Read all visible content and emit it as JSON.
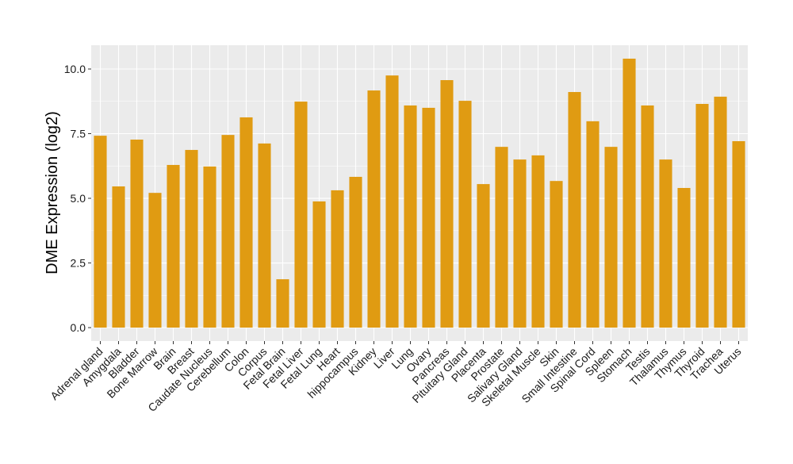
{
  "chart_data": {
    "type": "bar",
    "title": "",
    "xlabel": "",
    "ylabel": "DME Expression (log2)",
    "ylim": [
      -0.52,
      10.92
    ],
    "yticks": [
      0,
      2.5,
      5,
      7.5,
      10
    ],
    "ytick_labels": [
      "0.0",
      "2.5",
      "5.0",
      "7.5",
      "10.0"
    ],
    "grid": true,
    "bar_color": "#E09B12",
    "panel_color": "#EBEBEB",
    "categories": [
      "Adrenal gland",
      "Amygdala",
      "Bladder",
      "Bone Marrow",
      "Brain",
      "Breast",
      "Caudate Nucleus",
      "Cerebellum",
      "Colon",
      "Corpus",
      "Fetal Brain",
      "Fetal Liver",
      "Fetal Lung",
      "Heart",
      "hippocampus",
      "Kidney",
      "Liver",
      "Lung",
      "Ovary",
      "Pancreas",
      "Pituitary Gland",
      "Placenta",
      "Prostate",
      "Salivary Gland",
      "Skeletal Muscle",
      "Skin",
      "Small Intestine",
      "Spinal Cord",
      "Spleen",
      "Stomach",
      "Testis",
      "Thalamus",
      "Thymus",
      "Thyroid",
      "Trachea",
      "Uterus"
    ],
    "values": [
      7.42,
      5.46,
      7.27,
      5.21,
      6.29,
      6.87,
      6.23,
      7.45,
      8.13,
      7.12,
      1.87,
      8.74,
      4.88,
      5.31,
      5.83,
      9.17,
      9.75,
      8.59,
      8.5,
      9.57,
      8.77,
      5.55,
      6.99,
      6.5,
      6.66,
      5.67,
      9.11,
      7.98,
      6.99,
      10.4,
      8.59,
      6.5,
      5.4,
      8.65,
      8.93,
      7.21
    ]
  }
}
